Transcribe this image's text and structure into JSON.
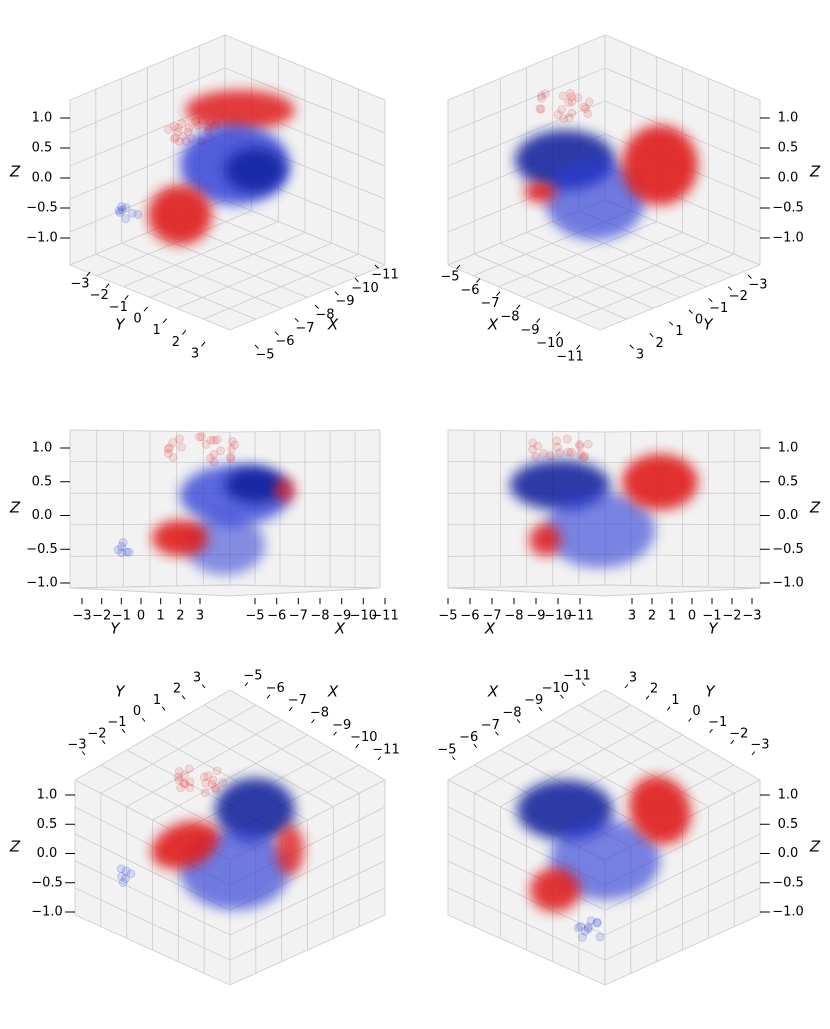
{
  "chart_data": [
    {
      "type": "scatter3d",
      "panel": "top-left",
      "xlabel": "X",
      "ylabel": "Y",
      "zlabel": "Z",
      "x_ticks": [
        "−5",
        "−6",
        "−7",
        "−8",
        "−9",
        "−10",
        "−11"
      ],
      "y_ticks": [
        "−3",
        "−2",
        "−1",
        "0",
        "1",
        "2",
        "3"
      ],
      "z_ticks": [
        "1.0",
        "0.5",
        "0.0",
        "−0.5",
        "−1.0"
      ],
      "xlim": [
        -11,
        -5
      ],
      "ylim": [
        -3,
        3
      ],
      "zlim": [
        -1.0,
        1.0
      ],
      "grid": true,
      "series": [
        {
          "color": "#2a3bd6",
          "description_values": []
        },
        {
          "color": "#e01e1e",
          "description_values": []
        }
      ]
    },
    {
      "type": "scatter3d",
      "panel": "top-right",
      "xlabel": "X",
      "ylabel": "Y",
      "zlabel": "Z",
      "x_ticks": [
        "−5",
        "−6",
        "−7",
        "−8",
        "−9",
        "−10",
        "−11"
      ],
      "y_ticks": [
        "3",
        "2",
        "1",
        "0",
        "−1",
        "−2",
        "−3"
      ],
      "z_ticks": [
        "1.0",
        "0.5",
        "0.0",
        "−0.5",
        "−1.0"
      ],
      "xlim": [
        -11,
        -5
      ],
      "ylim": [
        -3,
        3
      ],
      "zlim": [
        -1.0,
        1.0
      ],
      "grid": true
    },
    {
      "type": "scatter3d",
      "panel": "middle-left",
      "xlabel": "X",
      "ylabel": "Y",
      "zlabel": "Z",
      "x_ticks": [
        "−5",
        "−6",
        "−7",
        "−8",
        "−9",
        "−10",
        "−11"
      ],
      "y_ticks": [
        "−3",
        "−2",
        "−1",
        "0",
        "1",
        "2",
        "3"
      ],
      "z_ticks": [
        "1.0",
        "0.5",
        "0.0",
        "−0.5",
        "−1.0"
      ],
      "xlim": [
        -11,
        -5
      ],
      "ylim": [
        -3,
        3
      ],
      "zlim": [
        -1.0,
        1.0
      ],
      "grid": true
    },
    {
      "type": "scatter3d",
      "panel": "middle-right",
      "xlabel": "X",
      "ylabel": "Y",
      "zlabel": "Z",
      "x_ticks": [
        "−5",
        "−6",
        "−7",
        "−8",
        "−9",
        "−10",
        "−11"
      ],
      "y_ticks": [
        "3",
        "2",
        "1",
        "0",
        "−1",
        "−2",
        "−3"
      ],
      "z_ticks": [
        "1.0",
        "0.5",
        "0.0",
        "−0.5",
        "−1.0"
      ],
      "xlim": [
        -11,
        -5
      ],
      "ylim": [
        -3,
        3
      ],
      "zlim": [
        -1.0,
        1.0
      ],
      "grid": true
    },
    {
      "type": "scatter3d",
      "panel": "bottom-left",
      "xlabel": "X",
      "ylabel": "Y",
      "zlabel": "Z",
      "x_ticks": [
        "−5",
        "−6",
        "−7",
        "−8",
        "−9",
        "−10",
        "−11"
      ],
      "y_ticks": [
        "−3",
        "−2",
        "−1",
        "0",
        "1",
        "2",
        "3"
      ],
      "z_ticks": [
        "1.0",
        "0.5",
        "0.0",
        "−0.5",
        "−1.0"
      ],
      "xlim": [
        -11,
        -5
      ],
      "ylim": [
        -3,
        3
      ],
      "zlim": [
        -1.0,
        1.0
      ],
      "grid": true
    },
    {
      "type": "scatter3d",
      "panel": "bottom-right",
      "xlabel": "X",
      "ylabel": "Y",
      "zlabel": "Z",
      "x_ticks": [
        "−5",
        "−6",
        "−7",
        "−8",
        "−9",
        "−10",
        "−11"
      ],
      "y_ticks": [
        "3",
        "2",
        "1",
        "0",
        "−1",
        "−2",
        "−3"
      ],
      "z_ticks": [
        "1.0",
        "0.5",
        "0.0",
        "−0.5",
        "−1.0"
      ],
      "xlim": [
        -11,
        -5
      ],
      "ylim": [
        -3,
        3
      ],
      "zlim": [
        -1.0,
        1.0
      ],
      "grid": true
    }
  ],
  "colors": {
    "series_blue": "#2a3bd6",
    "series_dark_blue": "#0a1a9a",
    "series_red": "#e01e1e",
    "pane": "#f2f2f2",
    "grid": "#cfcfcf"
  }
}
